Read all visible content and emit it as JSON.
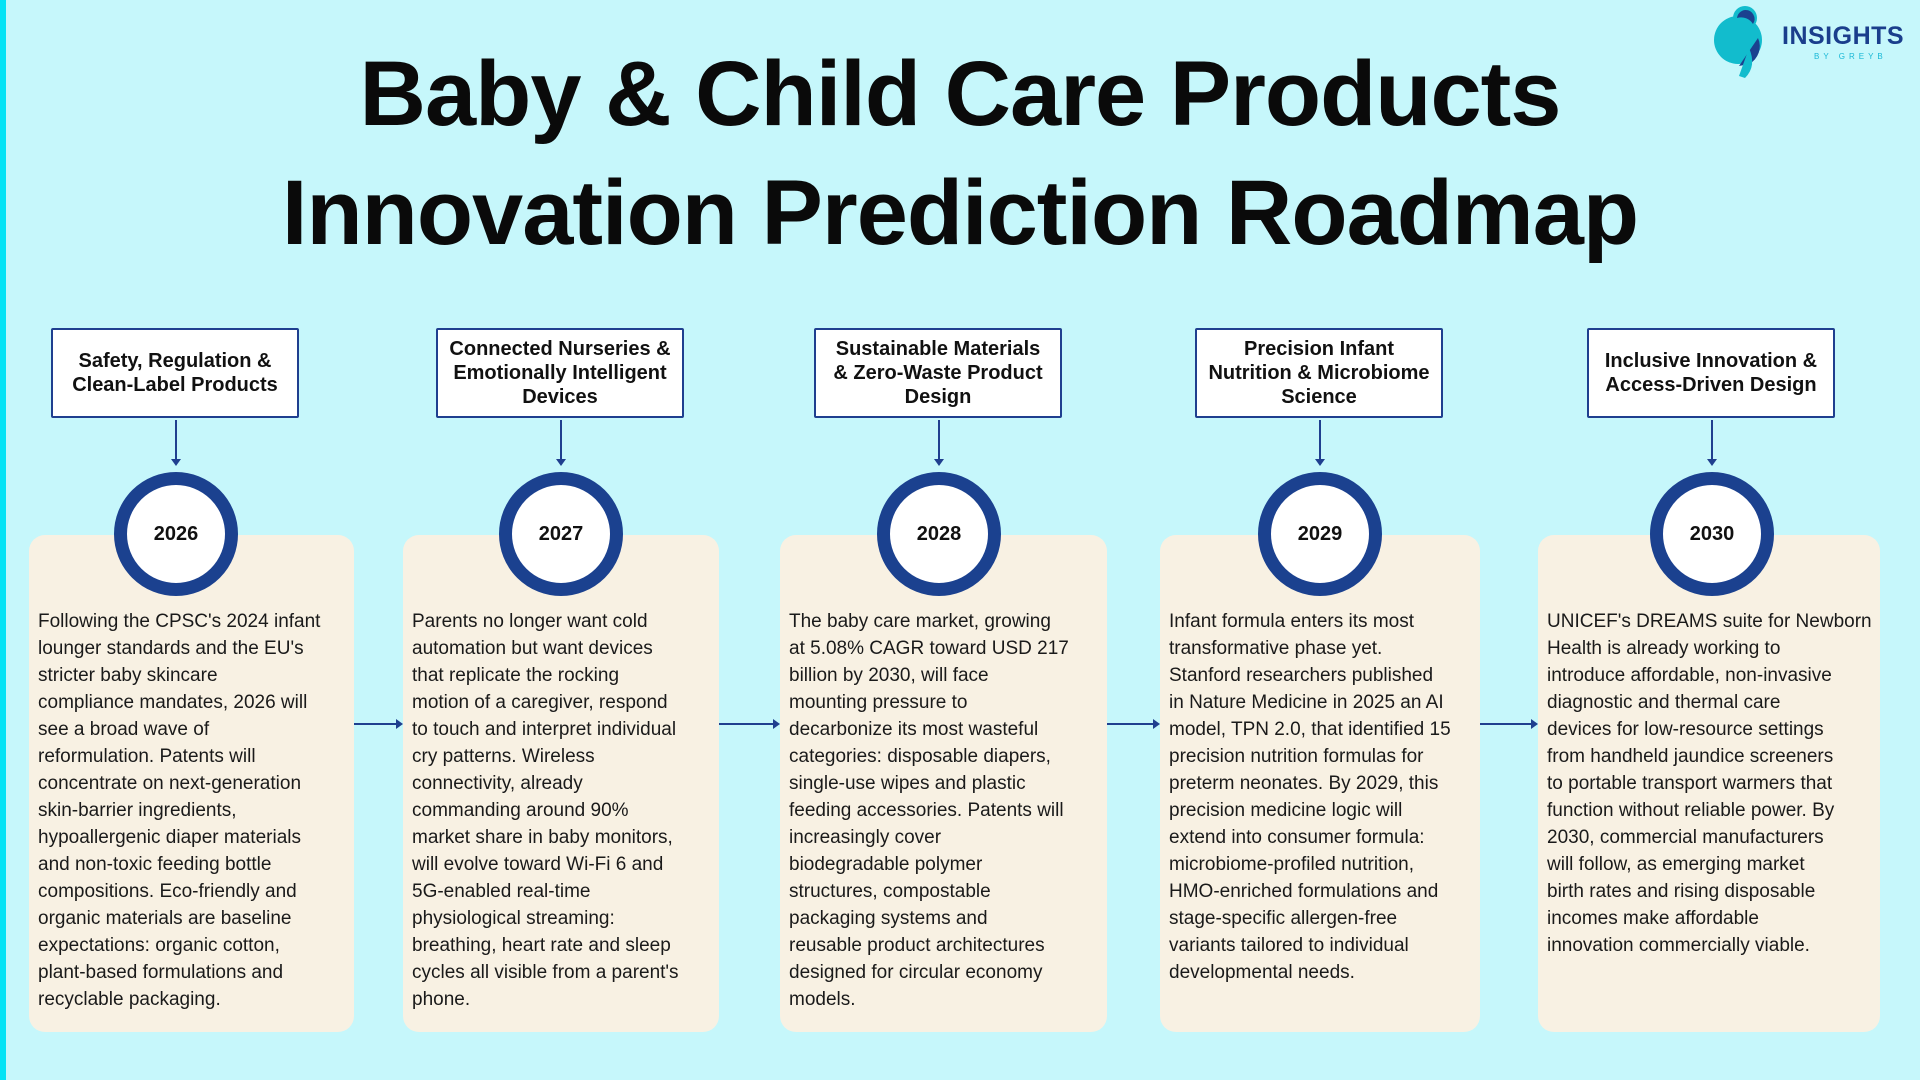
{
  "title": {
    "line1": "Baby & Child Care Products",
    "line2": "Innovation Prediction Roadmap"
  },
  "logo": {
    "brand": "INSIGHTS",
    "sub": "BY GREYB"
  },
  "colors": {
    "background": "#c6f7fb",
    "accent": "#1b418f",
    "card": "#f8f1e3",
    "stripe": "#05e3f5"
  },
  "milestones": [
    {
      "year": "2026",
      "label": "Safety, Regulation & Clean-Label Products",
      "lines": [
        "Following the CPSC's 2024 infant",
        "lounger standards and the EU's",
        "stricter baby skincare",
        "compliance mandates, 2026 will",
        "see a broad wave of",
        "reformulation. Patents will",
        "concentrate on next-generation",
        "skin-barrier ingredients,",
        "hypoallergenic diaper materials",
        "and non-toxic feeding bottle",
        "compositions. Eco-friendly and",
        "organic materials are baseline",
        "expectations: organic cotton,",
        "plant-based formulations and",
        "recyclable packaging."
      ]
    },
    {
      "year": "2027",
      "label": "Connected Nurseries & Emotionally Intelligent Devices",
      "lines": [
        "Parents no longer want cold",
        "automation but want devices",
        "that replicate the rocking",
        "motion of a caregiver, respond",
        "to touch and interpret individual",
        "cry patterns. Wireless",
        "connectivity, already",
        "commanding around 90%",
        "market share in baby monitors,",
        "will evolve toward Wi-Fi 6 and",
        "5G-enabled real-time",
        "physiological streaming:",
        "breathing, heart rate and sleep",
        "cycles all visible from a parent's",
        "phone."
      ]
    },
    {
      "year": "2028",
      "label": "Sustainable Materials & Zero-Waste Product Design",
      "lines": [
        "The baby care market, growing",
        "at 5.08% CAGR toward USD 217",
        "billion by 2030, will face",
        "mounting pressure to",
        "decarbonize its most wasteful",
        "categories: disposable diapers,",
        "single-use wipes and plastic",
        "feeding accessories. Patents will",
        "increasingly cover",
        "biodegradable polymer",
        "structures, compostable",
        "packaging systems and",
        "reusable product architectures",
        "designed for circular economy",
        "models."
      ]
    },
    {
      "year": "2029",
      "label": "Precision Infant Nutrition & Microbiome Science",
      "lines": [
        "Infant formula enters its most",
        "transformative phase yet.",
        "Stanford researchers published",
        "in Nature Medicine in 2025 an AI",
        "model, TPN 2.0, that identified 15",
        "precision nutrition formulas for",
        "preterm neonates. By 2029, this",
        "precision medicine logic will",
        "extend into consumer formula:",
        "microbiome-profiled nutrition,",
        "HMO-enriched formulations and",
        "stage-specific allergen-free",
        "variants tailored to individual",
        "developmental needs."
      ]
    },
    {
      "year": "2030",
      "label": "Inclusive Innovation & Access-Driven Design",
      "lines": [
        "UNICEF's DREAMS suite for Newborn",
        "Health is already working to",
        "introduce affordable, non-invasive",
        "diagnostic and thermal care",
        "devices for low-resource settings",
        "from handheld jaundice screeners",
        "to portable transport warmers that",
        "function without reliable power. By",
        "2030, commercial manufacturers",
        "will follow, as emerging market",
        "birth rates and rising disposable",
        "incomes make affordable",
        "innovation commercially viable."
      ]
    }
  ]
}
